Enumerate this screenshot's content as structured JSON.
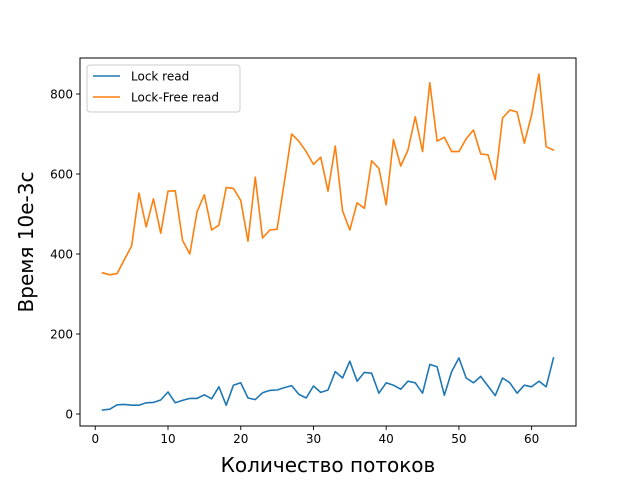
{
  "chart_data": {
    "type": "line",
    "title": "",
    "xlabel": "Количество потоков",
    "ylabel": "Время 10e-3с",
    "xlim": [
      -2.1,
      66.1
    ],
    "ylim": [
      -30,
      890
    ],
    "xticks": [
      0,
      10,
      20,
      30,
      40,
      50,
      60
    ],
    "yticks": [
      0,
      200,
      400,
      600,
      800
    ],
    "grid": false,
    "legend_position": "top-left",
    "x": [
      1,
      2,
      3,
      4,
      5,
      6,
      7,
      8,
      9,
      10,
      11,
      12,
      13,
      14,
      15,
      16,
      17,
      18,
      19,
      20,
      21,
      22,
      23,
      24,
      25,
      26,
      27,
      28,
      29,
      30,
      31,
      32,
      33,
      34,
      35,
      36,
      37,
      38,
      39,
      40,
      41,
      42,
      43,
      44,
      45,
      46,
      47,
      48,
      49,
      50,
      51,
      52,
      53,
      54,
      55,
      56,
      57,
      58,
      59,
      60,
      61,
      62,
      63
    ],
    "series": [
      {
        "name": "Lock read",
        "color": "#1f77b4",
        "values": [
          10,
          12,
          23,
          24,
          22,
          22,
          28,
          29,
          35,
          55,
          28,
          34,
          39,
          39,
          48,
          38,
          68,
          22,
          72,
          78,
          40,
          36,
          53,
          59,
          60,
          66,
          71,
          49,
          40,
          70,
          54,
          60,
          106,
          90,
          132,
          82,
          104,
          102,
          52,
          78,
          72,
          62,
          82,
          78,
          52,
          124,
          118,
          47,
          106,
          140,
          90,
          78,
          94,
          70,
          46,
          90,
          78,
          52,
          72,
          68,
          82,
          68,
          140
        ]
      },
      {
        "name": "Lock-Free read",
        "color": "#ff7f0e",
        "values": [
          353,
          348,
          351,
          386,
          420,
          552,
          468,
          538,
          452,
          557,
          558,
          434,
          400,
          506,
          548,
          460,
          472,
          566,
          564,
          534,
          432,
          592,
          440,
          460,
          462,
          580,
          700,
          682,
          656,
          624,
          642,
          557,
          670,
          508,
          460,
          528,
          514,
          633,
          614,
          523,
          686,
          620,
          660,
          743,
          656,
          828,
          682,
          692,
          656,
          656,
          688,
          710,
          650,
          648,
          586,
          740,
          760,
          755,
          677,
          748,
          850,
          668,
          660
        ]
      }
    ]
  }
}
